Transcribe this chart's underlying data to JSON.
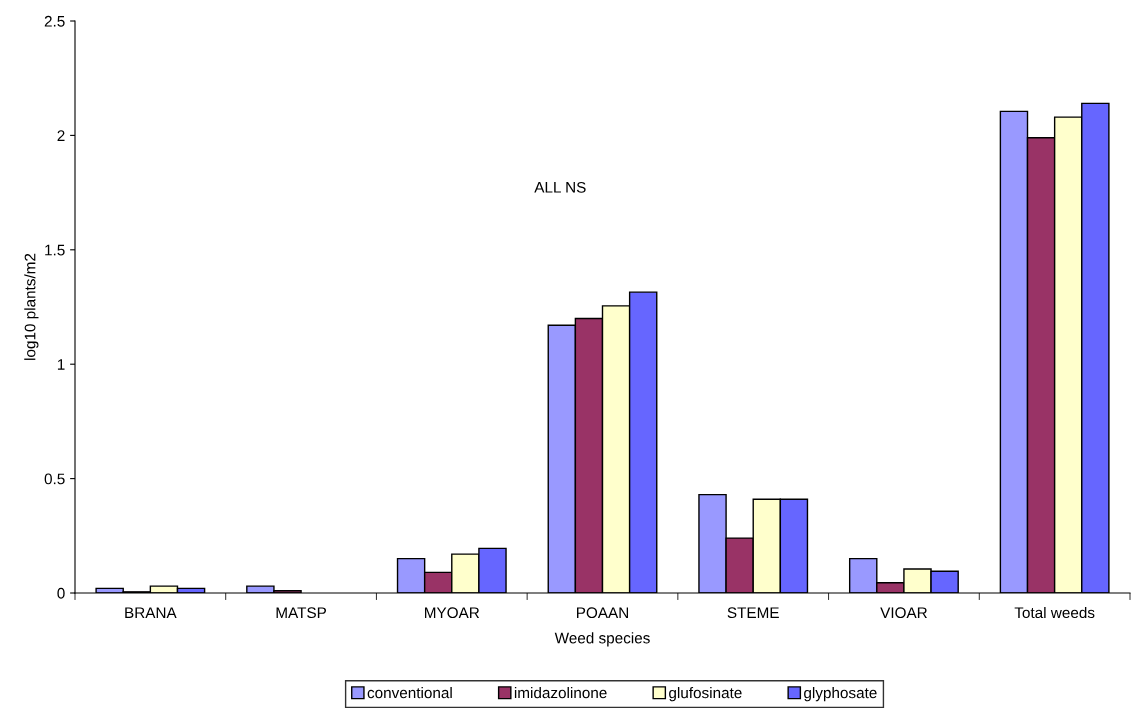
{
  "chart_data": {
    "type": "bar",
    "xlabel": "Weed species",
    "ylabel": "log10 plants/m2",
    "categories": [
      "BRANA",
      "MATSP",
      "MYOAR",
      "POAAN",
      "STEME",
      "VIOAR",
      "Total weeds"
    ],
    "series": [
      {
        "name": "conventional",
        "color": "#9999ff",
        "values": [
          0.02,
          0.03,
          0.15,
          1.17,
          0.43,
          0.15,
          2.105
        ]
      },
      {
        "name": "imidazolinone",
        "color": "#993366",
        "values": [
          0.005,
          0.01,
          0.09,
          1.2,
          0.24,
          0.045,
          1.99
        ]
      },
      {
        "name": "glufosinate",
        "color": "#ffffcc",
        "values": [
          0.03,
          null,
          0.17,
          1.255,
          0.41,
          0.105,
          2.08
        ]
      },
      {
        "name": "glyphosate",
        "color": "#6666ff",
        "values": [
          0.02,
          null,
          0.195,
          1.315,
          0.41,
          0.095,
          2.14
        ]
      }
    ],
    "annotations": [
      "ALL NS"
    ],
    "ylim": [
      0,
      2.5
    ],
    "yticks": [
      0,
      0.5,
      1,
      1.5,
      2,
      2.5
    ],
    "grid": false,
    "legend": "bottom"
  }
}
